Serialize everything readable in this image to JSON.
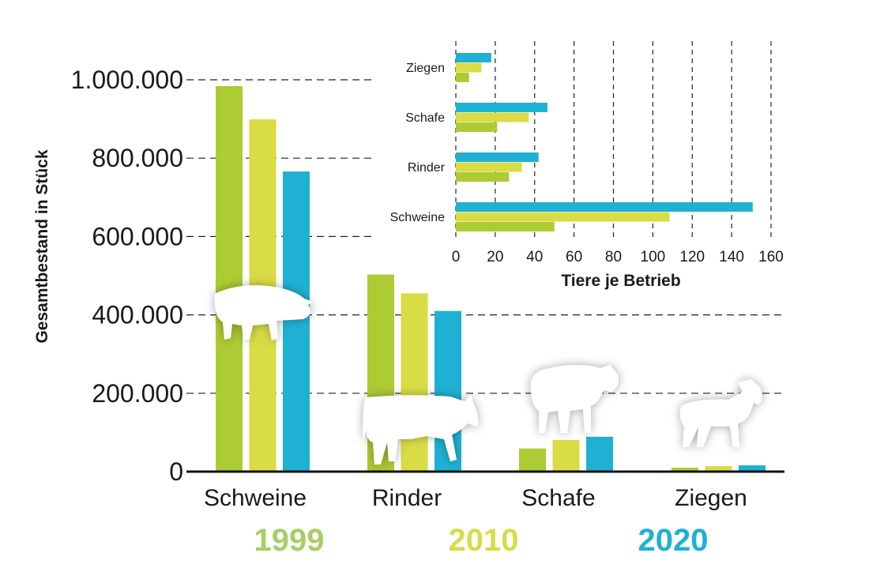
{
  "chart_data": [
    {
      "type": "bar",
      "title": "",
      "ylabel": "Gesamtbestand in Stück",
      "xlabel": "",
      "ylim": [
        0,
        1000000
      ],
      "yticks": [
        0,
        200000,
        400000,
        600000,
        800000,
        1000000
      ],
      "ytick_labels": [
        "0",
        "200.000",
        "400.000",
        "600.000",
        "800.000",
        "1.000.000"
      ],
      "grid": "horizontal dashed",
      "categories": [
        "Schweine",
        "Rinder",
        "Schafe",
        "Ziegen"
      ],
      "series": [
        {
          "name": "1999",
          "color": "#adcb33",
          "values": [
            984000,
            503000,
            59000,
            10000
          ]
        },
        {
          "name": "2010",
          "color": "#d9dc44",
          "values": [
            899000,
            455000,
            81000,
            14000
          ]
        },
        {
          "name": "2020",
          "color": "#1fb1d3",
          "values": [
            766000,
            410000,
            89000,
            16000
          ]
        }
      ],
      "legend": {
        "placement": "bottom",
        "entries": [
          "1999",
          "2010",
          "2020"
        ],
        "colors": [
          "#a9cd67",
          "#d6dc4a",
          "#1fb1d3"
        ]
      }
    },
    {
      "type": "bar",
      "orientation": "horizontal",
      "xlabel": "Tiere je Betrieb",
      "ylabel": "",
      "xlim": [
        0,
        160
      ],
      "xticks": [
        0,
        20,
        40,
        60,
        80,
        100,
        120,
        140,
        160
      ],
      "xtick_labels": [
        "0",
        "20",
        "40",
        "60",
        "80",
        "100",
        "120",
        "140",
        "160"
      ],
      "grid": "vertical dashed",
      "categories": [
        "Ziegen",
        "Schafe",
        "Rinder",
        "Schweine"
      ],
      "series": [
        {
          "name": "2020",
          "color": "#1fb1d3",
          "values": [
            18,
            46.5,
            42,
            150.7
          ]
        },
        {
          "name": "2010",
          "color": "#d9dc44",
          "values": [
            13,
            37,
            33.5,
            108.5
          ]
        },
        {
          "name": "1999",
          "color": "#adcb33",
          "values": [
            6.7,
            21,
            27,
            50
          ]
        }
      ]
    }
  ]
}
